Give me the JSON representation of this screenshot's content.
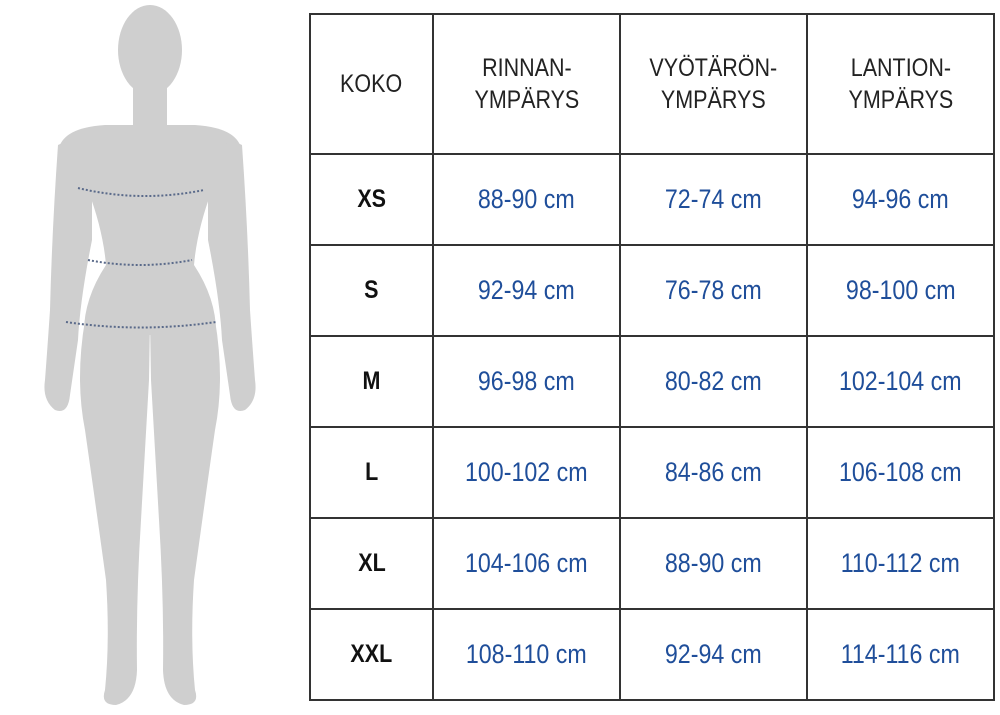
{
  "colors": {
    "value_text": "#1f4e9a",
    "figure": "#cfcfcf",
    "measure_line": "#5a6a8a"
  },
  "header": {
    "size": "KOKO",
    "chest": [
      "RINNAN-",
      "YMPÄRYS"
    ],
    "waist": [
      "VYÖTÄRÖN-",
      "YMPÄRYS"
    ],
    "hip": [
      "LANTION-",
      "YMPÄRYS"
    ]
  },
  "rows": [
    {
      "size": "XS",
      "chest": "88-90 cm",
      "waist": "72-74 cm",
      "hip": "94-96 cm"
    },
    {
      "size": "S",
      "chest": "92-94 cm",
      "waist": "76-78 cm",
      "hip": "98-100 cm"
    },
    {
      "size": "M",
      "chest": "96-98 cm",
      "waist": "80-82 cm",
      "hip": "102-104 cm"
    },
    {
      "size": "L",
      "chest": "100-102 cm",
      "waist": "84-86 cm",
      "hip": "106-108 cm"
    },
    {
      "size": "XL",
      "chest": "104-106 cm",
      "waist": "88-90 cm",
      "hip": "110-112 cm"
    },
    {
      "size": "XXL",
      "chest": "108-110 cm",
      "waist": "92-94 cm",
      "hip": "114-116 cm"
    }
  ]
}
